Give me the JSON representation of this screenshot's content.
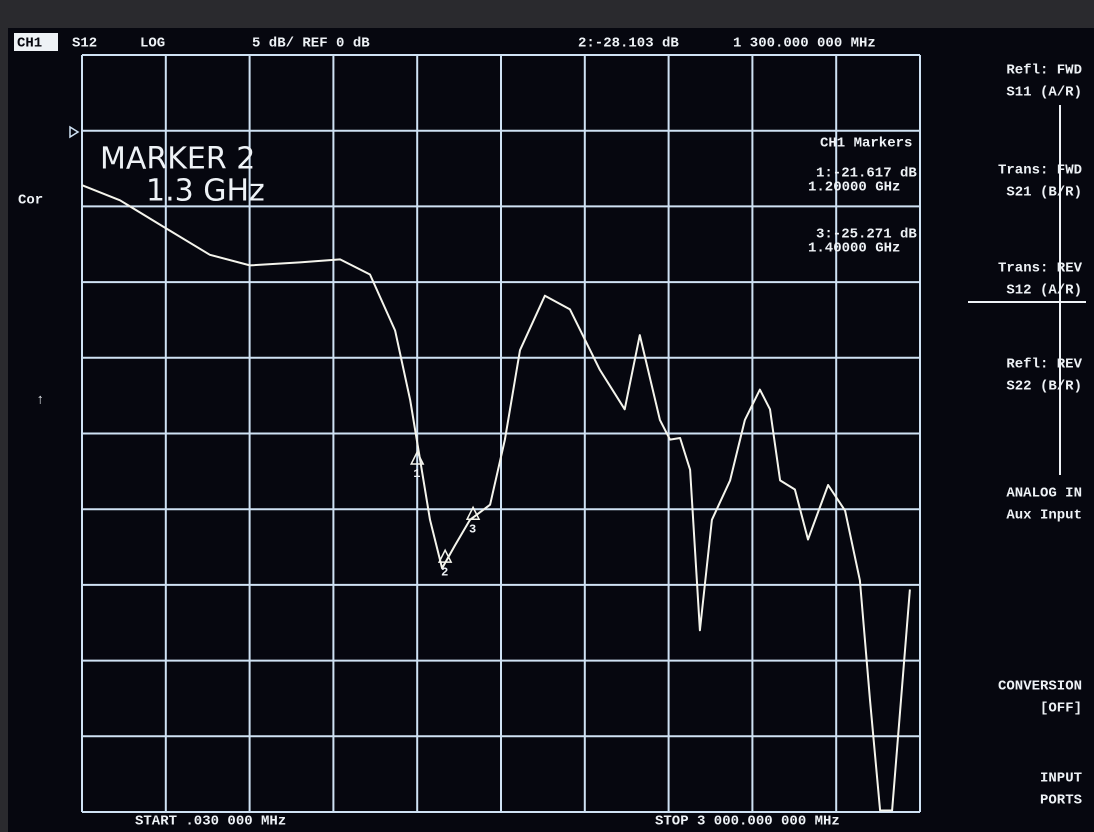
{
  "chart_data": {
    "type": "line",
    "header": {
      "channel": "CH1",
      "parameter": "S12",
      "format": "LOG",
      "scale": "5 dB/ REF 0 dB",
      "active_marker_value": "2:-28.103 dB",
      "active_marker_freq": "1 300.000 000 MHz"
    },
    "annotation": [
      "MARKER 2",
      "1.3 GHz"
    ],
    "left_labels": [
      "Cor",
      "↑"
    ],
    "markers_title": "CH1 Markers",
    "marker_readouts": [
      {
        "value": "1:-21.617 dB",
        "freq": "1.20000 GHz"
      },
      {
        "value": "3:-25.271 dB",
        "freq": "1.40000 GHz"
      }
    ],
    "start": "START .030 000 MHz",
    "stop": "STOP 3 000.000 000 MHz",
    "markers": [
      {
        "label": "1",
        "x": 1200,
        "value": -21.617
      },
      {
        "label": "2",
        "x": 1300,
        "value": -28.103
      },
      {
        "label": "3",
        "x": 1400,
        "value": -25.271
      }
    ],
    "x": [
      0.03,
      136,
      279,
      458,
      601,
      780,
      924,
      1031,
      1121,
      1175,
      1210,
      1246,
      1289,
      1335,
      1389,
      1461,
      1514,
      1568,
      1657,
      1747,
      1854,
      1943,
      1997,
      2069,
      2105,
      2141,
      2177,
      2212,
      2255,
      2320,
      2373,
      2427,
      2463,
      2499,
      2552,
      2599,
      2671,
      2732,
      2785,
      2821,
      2857,
      2900,
      2964
    ],
    "values": [
      -3.6,
      -4.6,
      -6.2,
      -8.2,
      -8.9,
      -8.7,
      -8.5,
      -9.5,
      -13.2,
      -17.8,
      -21.7,
      -25.7,
      -28.9,
      -27.4,
      -25.7,
      -24.7,
      -20.4,
      -14.5,
      -10.9,
      -11.8,
      -15.8,
      -18.4,
      -13.5,
      -19.1,
      -20.4,
      -20.3,
      -22.4,
      -33.0,
      -25.7,
      -23.1,
      -19.1,
      -17.1,
      -18.4,
      -23.1,
      -23.7,
      -27.0,
      -23.4,
      -25.1,
      -29.7,
      -37.6,
      -44.9,
      -44.9,
      -30.3
    ],
    "xlim": [
      0.03,
      3000
    ],
    "ylim": [
      -45,
      5
    ],
    "color": "#f4f4ec",
    "grid_color": "#cfe2f4",
    "softkeys": [
      {
        "line1": "Refl: FWD",
        "line2": "S11 (A/R)",
        "selected": false
      },
      {
        "line1": "Trans: FWD",
        "line2": "S21 (B/R)",
        "selected": false
      },
      {
        "line1": "Trans: REV",
        "line2": "S12 (A/R)",
        "selected": true
      },
      {
        "line1": "Refl: REV",
        "line2": "S22 (B/R)",
        "selected": false
      },
      {
        "line1": "ANALOG IN",
        "line2": "Aux Input",
        "selected": false
      },
      {
        "line1": "CONVERSION",
        "line2": "[OFF]",
        "selected": false
      },
      {
        "line1": "INPUT",
        "line2": "PORTS",
        "selected": false
      }
    ]
  }
}
